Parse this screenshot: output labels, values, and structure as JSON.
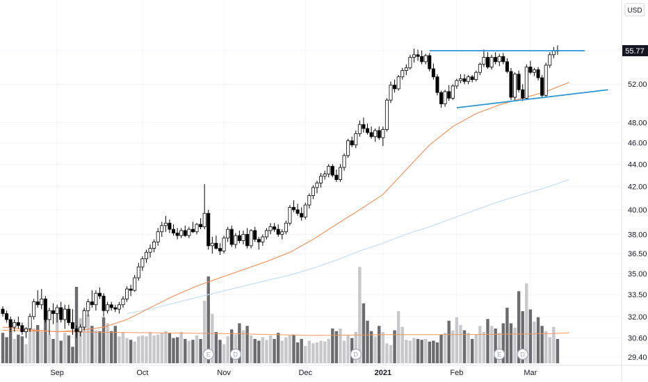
{
  "currency": "USD",
  "last_price_label": "55.77",
  "colors": {
    "up_fill": "#ffffff",
    "down_fill": "#000000",
    "candle_border": "#000000",
    "volume_up": "#c8c8cc",
    "volume_down": "#6b6b70",
    "ma50": "#f7935a",
    "ma200": "#c3ddf5",
    "trendline": "#2a93d5",
    "badge": "#131722",
    "event_icon": "#9ca3b5",
    "grid": "#f0f3fa"
  },
  "chart_data": {
    "type": "candlestick",
    "y_scale": "log",
    "ylim": [
      28.9,
      62.0
    ],
    "y_ticks": [
      "29.40",
      "30.60",
      "32.00",
      "33.50",
      "35.00",
      "36.50",
      "38.00",
      "40.00",
      "42.00",
      "44.00",
      "46.00",
      "48.00",
      "52.00",
      "55.77"
    ],
    "x_labels": [
      {
        "label": "Sep",
        "index": 14,
        "bold": false
      },
      {
        "label": "Oct",
        "index": 36,
        "bold": false
      },
      {
        "label": "Nov",
        "index": 57,
        "bold": false
      },
      {
        "label": "Dec",
        "index": 78,
        "bold": false
      },
      {
        "label": "2021",
        "index": 98,
        "bold": true
      },
      {
        "label": "Feb",
        "index": 117,
        "bold": false
      },
      {
        "label": "Mar",
        "index": 136,
        "bold": false
      }
    ],
    "ohlc": [
      [
        32.5,
        32.7,
        32.0,
        32.2
      ],
      [
        32.2,
        32.4,
        31.6,
        31.8
      ],
      [
        31.8,
        32.0,
        31.0,
        31.3
      ],
      [
        31.3,
        31.8,
        31.0,
        31.6
      ],
      [
        31.6,
        32.0,
        31.2,
        31.4
      ],
      [
        31.4,
        31.6,
        30.8,
        31.0
      ],
      [
        31.0,
        31.3,
        30.6,
        31.2
      ],
      [
        31.2,
        32.2,
        31.0,
        32.0
      ],
      [
        32.0,
        33.2,
        31.8,
        33.0
      ],
      [
        33.0,
        33.8,
        32.6,
        32.8
      ],
      [
        32.8,
        33.9,
        32.5,
        33.2
      ],
      [
        33.2,
        33.4,
        31.6,
        31.8
      ],
      [
        31.8,
        32.6,
        30.8,
        32.4
      ],
      [
        32.4,
        32.9,
        31.5,
        32.2
      ],
      [
        32.2,
        32.8,
        31.6,
        32.6
      ],
      [
        32.6,
        33.0,
        31.6,
        31.8
      ],
      [
        31.8,
        32.8,
        31.2,
        32.5
      ],
      [
        32.5,
        32.8,
        31.4,
        31.6
      ],
      [
        31.6,
        32.5,
        30.8,
        31.2
      ],
      [
        31.2,
        31.4,
        30.6,
        31.0
      ],
      [
        31.0,
        31.5,
        30.7,
        31.3
      ],
      [
        31.3,
        32.6,
        31.1,
        32.4
      ],
      [
        32.4,
        33.2,
        32.0,
        33.0
      ],
      [
        33.0,
        33.8,
        32.6,
        32.8
      ],
      [
        32.8,
        33.8,
        32.4,
        33.6
      ],
      [
        33.6,
        34.0,
        33.2,
        33.4
      ],
      [
        33.4,
        33.6,
        32.0,
        32.4
      ],
      [
        32.4,
        33.0,
        32.2,
        32.8
      ],
      [
        32.8,
        33.0,
        32.4,
        32.6
      ],
      [
        32.6,
        32.8,
        32.3,
        32.5
      ],
      [
        32.5,
        33.0,
        32.2,
        32.8
      ],
      [
        32.8,
        33.4,
        32.6,
        33.2
      ],
      [
        33.2,
        34.1,
        33.0,
        33.9
      ],
      [
        33.9,
        34.2,
        33.4,
        33.8
      ],
      [
        33.8,
        34.9,
        33.7,
        34.7
      ],
      [
        34.7,
        35.8,
        34.5,
        35.5
      ],
      [
        35.5,
        36.3,
        35.2,
        36.1
      ],
      [
        36.1,
        36.8,
        35.8,
        36.6
      ],
      [
        36.6,
        37.2,
        36.2,
        36.9
      ],
      [
        36.9,
        37.6,
        36.6,
        37.4
      ],
      [
        37.4,
        38.5,
        37.1,
        38.2
      ],
      [
        38.2,
        39.0,
        37.8,
        38.7
      ],
      [
        38.7,
        39.5,
        38.2,
        38.9
      ],
      [
        38.9,
        39.2,
        38.1,
        38.4
      ],
      [
        38.4,
        38.8,
        37.9,
        38.1
      ],
      [
        38.1,
        38.5,
        37.6,
        37.9
      ],
      [
        37.9,
        38.5,
        37.7,
        38.3
      ],
      [
        38.3,
        38.7,
        37.8,
        37.9
      ],
      [
        37.9,
        38.6,
        37.7,
        38.4
      ],
      [
        38.4,
        39.0,
        38.1,
        38.2
      ],
      [
        38.2,
        38.9,
        38.0,
        38.8
      ],
      [
        38.8,
        39.3,
        38.4,
        38.6
      ],
      [
        38.6,
        42.2,
        38.4,
        39.7
      ],
      [
        39.7,
        40.0,
        36.8,
        37.1
      ],
      [
        37.1,
        37.8,
        36.5,
        37.3
      ],
      [
        37.3,
        37.9,
        36.8,
        36.9
      ],
      [
        36.9,
        37.3,
        36.4,
        36.7
      ],
      [
        36.7,
        37.9,
        36.5,
        37.7
      ],
      [
        37.7,
        38.6,
        37.4,
        38.4
      ],
      [
        38.4,
        38.7,
        37.0,
        37.2
      ],
      [
        37.2,
        38.1,
        36.9,
        37.9
      ],
      [
        37.9,
        38.3,
        37.3,
        37.5
      ],
      [
        37.5,
        38.3,
        37.2,
        38.0
      ],
      [
        38.0,
        38.5,
        36.9,
        37.1
      ],
      [
        37.1,
        38.4,
        36.9,
        38.3
      ],
      [
        38.3,
        38.6,
        37.4,
        37.6
      ],
      [
        37.6,
        37.8,
        36.8,
        37.4
      ],
      [
        37.4,
        38.0,
        37.1,
        37.8
      ],
      [
        37.8,
        38.5,
        37.6,
        38.3
      ],
      [
        38.3,
        38.9,
        38.0,
        38.6
      ],
      [
        38.6,
        38.9,
        38.2,
        38.4
      ],
      [
        38.4,
        38.8,
        37.8,
        38.0
      ],
      [
        38.0,
        38.4,
        37.6,
        38.2
      ],
      [
        38.2,
        39.1,
        38.0,
        38.9
      ],
      [
        38.9,
        40.4,
        38.7,
        40.2
      ],
      [
        40.2,
        40.8,
        39.8,
        40.0
      ],
      [
        40.0,
        40.5,
        39.5,
        39.7
      ],
      [
        39.7,
        40.2,
        39.1,
        39.4
      ],
      [
        39.4,
        40.6,
        39.2,
        40.4
      ],
      [
        40.4,
        41.4,
        40.1,
        41.2
      ],
      [
        41.2,
        42.1,
        40.9,
        41.9
      ],
      [
        41.9,
        42.5,
        41.4,
        42.3
      ],
      [
        42.3,
        43.2,
        41.9,
        42.9
      ],
      [
        42.9,
        43.4,
        42.6,
        43.1
      ],
      [
        43.1,
        44.0,
        42.8,
        43.8
      ],
      [
        43.8,
        44.0,
        42.8,
        43.0
      ],
      [
        43.0,
        43.5,
        42.4,
        42.6
      ],
      [
        42.6,
        44.0,
        42.4,
        43.7
      ],
      [
        43.7,
        45.0,
        43.4,
        44.8
      ],
      [
        44.8,
        46.4,
        44.6,
        46.2
      ],
      [
        46.2,
        46.6,
        45.6,
        45.8
      ],
      [
        45.8,
        47.2,
        45.5,
        46.9
      ],
      [
        46.9,
        48.2,
        46.6,
        47.8
      ],
      [
        47.8,
        48.5,
        47.0,
        47.4
      ],
      [
        47.4,
        47.9,
        46.8,
        47.0
      ],
      [
        47.0,
        47.6,
        46.4,
        46.6
      ],
      [
        46.6,
        47.4,
        46.1,
        47.2
      ],
      [
        47.2,
        47.6,
        46.3,
        46.5
      ],
      [
        46.5,
        47.6,
        45.7,
        47.3
      ],
      [
        47.3,
        50.5,
        47.1,
        50.3
      ],
      [
        50.3,
        52.3,
        50.0,
        51.9
      ],
      [
        51.9,
        52.5,
        51.1,
        51.5
      ],
      [
        51.5,
        53.0,
        51.3,
        52.8
      ],
      [
        52.8,
        53.8,
        52.5,
        53.5
      ],
      [
        53.5,
        54.2,
        53.0,
        53.8
      ],
      [
        53.8,
        55.3,
        53.6,
        55.0
      ],
      [
        55.0,
        56.0,
        54.4,
        55.3
      ],
      [
        55.3,
        55.9,
        54.6,
        55.1
      ],
      [
        55.1,
        55.8,
        54.2,
        54.5
      ],
      [
        54.5,
        55.4,
        54.2,
        55.2
      ],
      [
        55.2,
        55.5,
        53.4,
        53.7
      ],
      [
        53.7,
        54.3,
        52.5,
        52.8
      ],
      [
        52.8,
        53.1,
        50.8,
        51.1
      ],
      [
        51.1,
        51.3,
        49.5,
        49.9
      ],
      [
        49.9,
        51.4,
        49.6,
        51.2
      ],
      [
        51.2,
        51.9,
        50.2,
        50.5
      ],
      [
        50.5,
        52.0,
        50.3,
        51.8
      ],
      [
        51.8,
        52.6,
        51.5,
        52.4
      ],
      [
        52.4,
        53.1,
        52.1,
        52.6
      ],
      [
        52.6,
        53.1,
        52.0,
        52.3
      ],
      [
        52.3,
        53.0,
        52.0,
        52.8
      ],
      [
        52.8,
        53.0,
        52.2,
        52.5
      ],
      [
        52.5,
        53.5,
        52.3,
        53.3
      ],
      [
        53.3,
        54.4,
        53.0,
        54.2
      ],
      [
        54.2,
        55.9,
        53.9,
        55.0
      ],
      [
        55.0,
        55.6,
        53.7,
        53.9
      ],
      [
        53.9,
        55.3,
        53.6,
        55.0
      ],
      [
        55.0,
        55.6,
        54.2,
        54.5
      ],
      [
        54.5,
        55.4,
        54.0,
        55.1
      ],
      [
        55.1,
        55.5,
        54.2,
        54.5
      ],
      [
        54.5,
        54.9,
        53.2,
        53.4
      ],
      [
        53.4,
        53.8,
        50.3,
        50.6
      ],
      [
        50.6,
        53.3,
        50.3,
        53.1
      ],
      [
        53.1,
        53.5,
        51.1,
        51.4
      ],
      [
        51.4,
        52.0,
        50.2,
        50.5
      ],
      [
        50.5,
        54.2,
        50.3,
        53.9
      ],
      [
        53.9,
        54.6,
        53.1,
        53.3
      ],
      [
        53.3,
        53.8,
        52.9,
        53.6
      ],
      [
        53.6,
        53.9,
        52.4,
        52.7
      ],
      [
        52.7,
        53.0,
        50.5,
        50.8
      ],
      [
        50.8,
        54.4,
        50.6,
        54.1
      ],
      [
        54.1,
        55.6,
        53.8,
        55.3
      ],
      [
        55.3,
        56.2,
        54.9,
        55.8
      ],
      [
        55.8,
        56.4,
        55.3,
        55.77
      ]
    ],
    "volume_ratio": [
      0.35,
      0.3,
      0.42,
      0.28,
      0.33,
      0.31,
      0.22,
      0.47,
      0.4,
      0.44,
      0.36,
      0.5,
      0.33,
      0.28,
      0.64,
      0.26,
      0.35,
      0.32,
      0.19,
      0.88,
      0.52,
      0.62,
      0.56,
      0.43,
      0.38,
      0.37,
      0.53,
      0.46,
      0.37,
      0.43,
      0.31,
      0.36,
      0.29,
      0.27,
      0.25,
      0.31,
      0.32,
      0.31,
      0.36,
      0.32,
      0.33,
      0.35,
      0.37,
      0.35,
      0.29,
      0.3,
      0.36,
      0.28,
      0.26,
      0.27,
      0.32,
      0.28,
      0.72,
      1.0,
      0.57,
      0.36,
      0.27,
      0.22,
      0.31,
      0.39,
      0.33,
      0.46,
      0.38,
      0.43,
      0.32,
      0.28,
      0.26,
      0.3,
      0.27,
      0.32,
      0.28,
      0.35,
      0.26,
      0.3,
      0.32,
      0.33,
      0.24,
      0.28,
      0.2,
      0.26,
      0.23,
      0.24,
      0.26,
      0.25,
      0.28,
      0.4,
      0.37,
      0.4,
      0.26,
      0.32,
      0.29,
      0.36,
      1.11,
      0.69,
      0.49,
      0.37,
      0.31,
      0.43,
      0.36,
      0.23,
      0.21,
      0.38,
      0.6,
      0.42,
      0.27,
      0.26,
      0.29,
      0.28,
      0.27,
      0.28,
      0.25,
      0.26,
      0.24,
      0.33,
      0.35,
      0.49,
      0.38,
      0.53,
      0.44,
      0.38,
      0.35,
      0.28,
      0.33,
      0.43,
      0.36,
      0.51,
      0.43,
      0.4,
      0.35,
      0.46,
      0.64,
      0.46,
      0.41,
      0.83,
      0.6,
      0.92,
      0.62,
      0.48,
      0.53,
      0.43,
      0.37,
      0.3,
      0.42,
      0.28
    ],
    "ma50": [
      [
        0,
        31.3
      ],
      [
        8,
        31.1
      ],
      [
        14,
        31.0
      ],
      [
        20,
        31.1
      ],
      [
        26,
        31.3
      ],
      [
        32,
        31.8
      ],
      [
        38,
        32.6
      ],
      [
        44,
        33.4
      ],
      [
        50,
        34.1
      ],
      [
        56,
        34.7
      ],
      [
        62,
        35.3
      ],
      [
        68,
        35.9
      ],
      [
        74,
        36.6
      ],
      [
        80,
        37.6
      ],
      [
        86,
        38.8
      ],
      [
        92,
        40.0
      ],
      [
        98,
        41.3
      ],
      [
        104,
        43.5
      ],
      [
        110,
        45.8
      ],
      [
        116,
        47.6
      ],
      [
        122,
        48.9
      ],
      [
        128,
        49.8
      ],
      [
        134,
        50.5
      ],
      [
        140,
        51.2
      ],
      [
        146,
        52.2
      ]
    ],
    "ma200": [
      [
        32,
        32.2
      ],
      [
        38,
        32.5
      ],
      [
        44,
        32.9
      ],
      [
        50,
        33.3
      ],
      [
        56,
        33.7
      ],
      [
        62,
        34.1
      ],
      [
        68,
        34.5
      ],
      [
        74,
        34.9
      ],
      [
        80,
        35.4
      ],
      [
        86,
        36.0
      ],
      [
        92,
        36.7
      ],
      [
        98,
        37.3
      ],
      [
        104,
        38.0
      ],
      [
        110,
        38.6
      ],
      [
        116,
        39.3
      ],
      [
        122,
        40.0
      ],
      [
        128,
        40.7
      ],
      [
        134,
        41.3
      ],
      [
        140,
        41.9
      ],
      [
        146,
        42.6
      ]
    ],
    "ma_volume_ratio": [
      [
        0,
        0.38
      ],
      [
        20,
        0.36
      ],
      [
        40,
        0.35
      ],
      [
        60,
        0.34
      ],
      [
        80,
        0.32
      ],
      [
        100,
        0.33
      ],
      [
        120,
        0.33
      ],
      [
        140,
        0.34
      ],
      [
        146,
        0.35
      ]
    ],
    "trendlines": [
      {
        "from": [
          110,
          55.77
        ],
        "to": [
          150,
          55.77
        ]
      },
      {
        "from": [
          117,
          49.5
        ],
        "to": [
          156,
          51.4
        ]
      }
    ],
    "events": [
      {
        "index": 53,
        "symbol": "E",
        "kind": "earnings"
      },
      {
        "index": 60,
        "symbol": "D",
        "kind": "dividend"
      },
      {
        "index": 91,
        "symbol": "D",
        "kind": "dividend"
      },
      {
        "index": 128,
        "symbol": "E",
        "kind": "earnings"
      },
      {
        "index": 134,
        "symbol": "D",
        "kind": "dividend"
      }
    ]
  }
}
